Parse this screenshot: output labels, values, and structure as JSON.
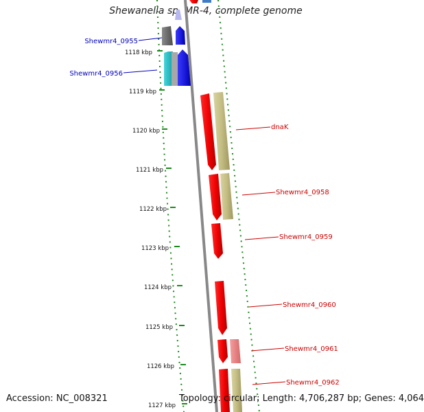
{
  "title": "Shewanella sp. MR-4, complete genome",
  "footer": {
    "accession": "Accession: NC_008321",
    "stats": "Topology: circular; Length: 4,706,287 bp; Genes: 4,064"
  },
  "colors": {
    "left_labels": "#0000bb",
    "right_labels": "#cc0000",
    "tick": "#1a8a1a",
    "backbone": "#888888"
  },
  "kbp_ticks": [
    "1118 kbp",
    "1119 kbp",
    "1120 kbp",
    "1121 kbp",
    "1122 kbp",
    "1123 kbp",
    "1124 kbp",
    "1125 kbp",
    "1126 kbp",
    "1127 kbp"
  ],
  "labels_left": [
    "Shewmr4_0955",
    "Shewmr4_0956"
  ],
  "labels_right": [
    "dnaK",
    "Shewmr4_0958",
    "Shewmr4_0959",
    "Shewmr4_0960",
    "Shewmr4_0961",
    "Shewmr4_0962"
  ]
}
